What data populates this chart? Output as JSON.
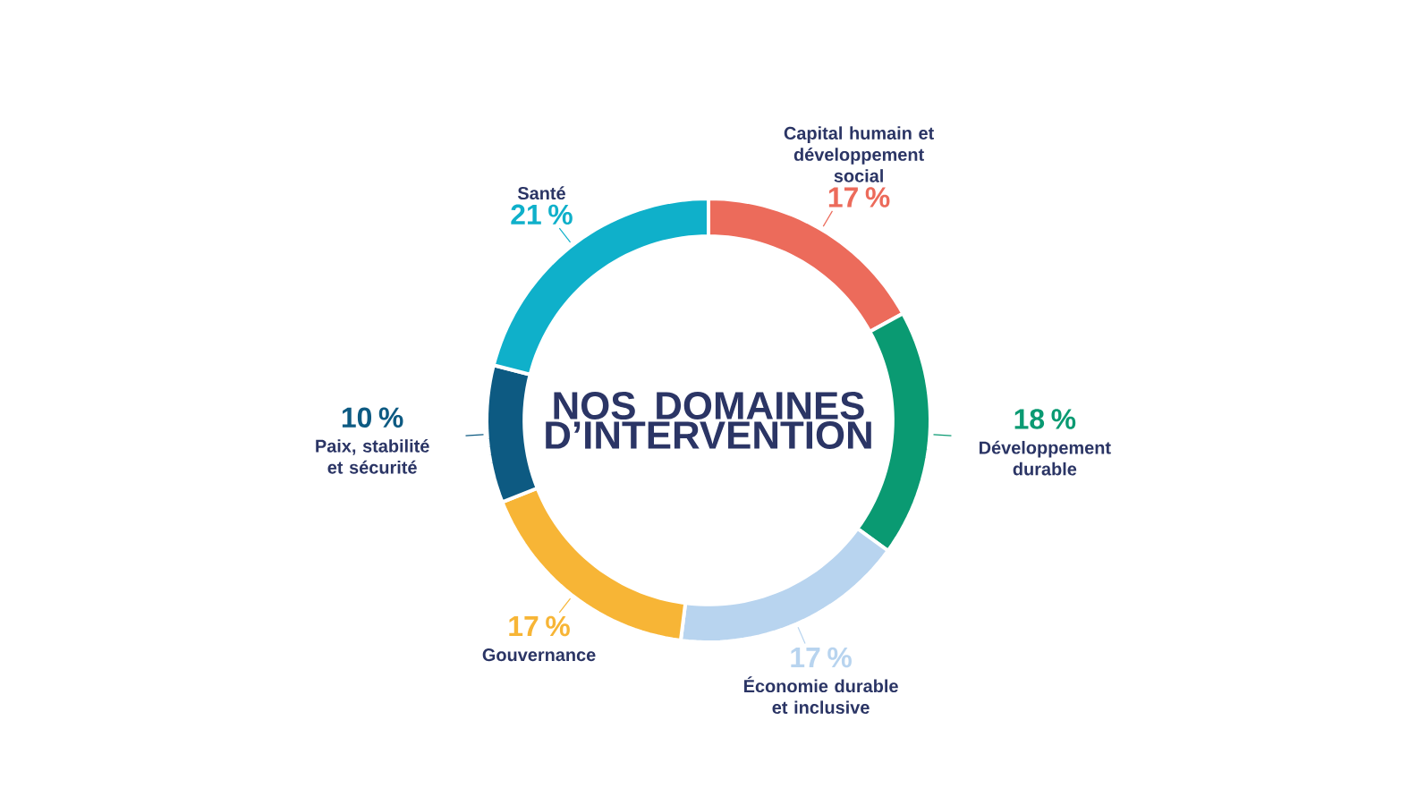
{
  "chart_data": {
    "type": "donut",
    "title": "NOS DOMAINES D’INTERVENTION",
    "categories": [
      "Capital humain et développement social",
      "Développement durable",
      "Économie durable et inclusive",
      "Gouvernance",
      "Paix, stabilité et sécurité",
      "Santé"
    ],
    "values": [
      17,
      18,
      17,
      17,
      10,
      21
    ],
    "value_labels": [
      "17 %",
      "18 %",
      "17 %",
      "17 %",
      "10 %",
      "21 %"
    ],
    "colors": [
      "#ec6b5b",
      "#0a9a72",
      "#b8d4ef",
      "#f7b536",
      "#0d5a82",
      "#0fb0ca"
    ]
  }
}
